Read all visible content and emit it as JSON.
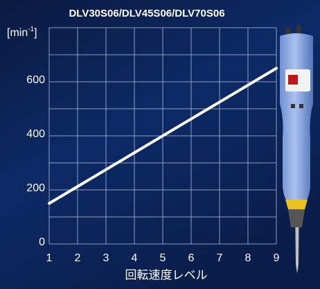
{
  "chart_data": {
    "type": "line",
    "title": "DLV30S06/DLV45S06/DLV70S06",
    "y_label": [
      "[min",
      "-1",
      "]"
    ],
    "x_label": "回転速度レベル",
    "x": [
      1,
      9
    ],
    "series": [
      {
        "name": "DLV30S06/DLV45S06/DLV70S06",
        "color": "#ffffff",
        "values": [
          150,
          650
        ]
      }
    ],
    "xlim": [
      1,
      9
    ],
    "xticks": [
      1,
      2,
      3,
      4,
      5,
      6,
      7,
      8,
      9
    ],
    "ylim": [
      0,
      800
    ],
    "yticks": [
      0,
      200,
      400,
      600
    ],
    "minor_yticks": [
      100,
      300,
      500,
      700,
      800
    ],
    "grid": true
  }
}
